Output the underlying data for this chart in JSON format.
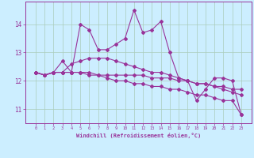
{
  "xlabel": "Windchill (Refroidissement éolien,°C)",
  "background_color": "#cceeff",
  "grid_color": "#aaccbb",
  "line_color": "#993399",
  "x": [
    0,
    1,
    2,
    3,
    4,
    5,
    6,
    7,
    8,
    9,
    10,
    11,
    12,
    13,
    14,
    15,
    16,
    17,
    18,
    19,
    20,
    21,
    22,
    23
  ],
  "series1": [
    12.3,
    12.2,
    12.3,
    12.7,
    12.3,
    14.0,
    13.8,
    13.1,
    13.1,
    13.3,
    13.5,
    14.5,
    13.7,
    13.8,
    14.1,
    13.0,
    12.1,
    12.0,
    11.3,
    11.7,
    12.1,
    12.1,
    12.0,
    10.8
  ],
  "series2": [
    12.3,
    12.2,
    12.3,
    12.3,
    12.3,
    12.3,
    12.3,
    12.2,
    12.2,
    12.2,
    12.2,
    12.2,
    12.2,
    12.1,
    12.1,
    12.1,
    12.0,
    12.0,
    11.9,
    11.9,
    11.8,
    11.8,
    11.7,
    11.7
  ],
  "series3": [
    12.3,
    12.2,
    12.3,
    12.3,
    12.6,
    12.7,
    12.8,
    12.8,
    12.8,
    12.7,
    12.6,
    12.5,
    12.4,
    12.3,
    12.3,
    12.2,
    12.1,
    12.0,
    11.9,
    11.9,
    11.8,
    11.7,
    11.6,
    11.5
  ],
  "series4": [
    12.3,
    12.2,
    12.3,
    12.3,
    12.3,
    12.3,
    12.2,
    12.2,
    12.1,
    12.0,
    12.0,
    11.9,
    11.9,
    11.8,
    11.8,
    11.7,
    11.7,
    11.6,
    11.5,
    11.5,
    11.4,
    11.3,
    11.3,
    10.8
  ],
  "ylim": [
    10.5,
    14.8
  ],
  "yticks": [
    11,
    12,
    13,
    14
  ],
  "xticks": [
    0,
    1,
    2,
    3,
    4,
    5,
    6,
    7,
    8,
    9,
    10,
    11,
    12,
    13,
    14,
    15,
    16,
    17,
    18,
    19,
    20,
    21,
    22,
    23
  ],
  "xtick_labels": [
    "0",
    "1",
    "2",
    "3",
    "4",
    "5",
    "6",
    "7",
    "8",
    "9",
    "10",
    "11",
    "12",
    "13",
    "14",
    "15",
    "16",
    "17",
    "18",
    "19",
    "20",
    "21",
    "22",
    "23"
  ],
  "figsize": [
    3.2,
    2.0
  ],
  "dpi": 100
}
